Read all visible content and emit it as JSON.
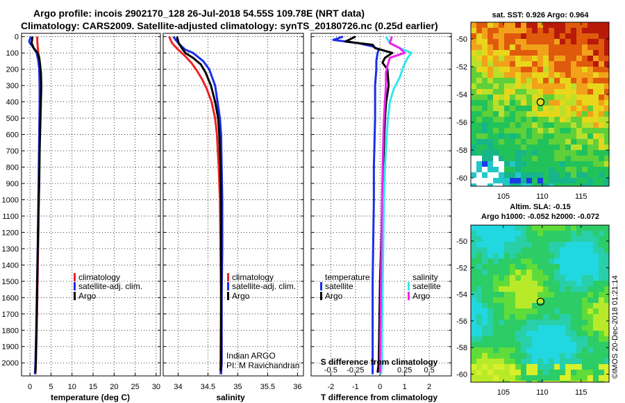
{
  "header": {
    "line1": "Argo profile: incois 2902170_128 26-Jul-2018 54.55S 109.78E (NRT data)",
    "line2": "Climatology: CARS2009. Satellite-adjusted climatology: synTS_20180726.nc (0.25d earlier)"
  },
  "colors": {
    "climatology": "#ee2222",
    "satellite": "#1a2ee6",
    "argo": "#000000",
    "salinity_satellite": "#33e6ee",
    "salinity_argo": "#ee22ee"
  },
  "chart_data": [
    {
      "type": "line",
      "name": "temperature",
      "xlabel": "temperature (deg C)",
      "ylabel": "",
      "xlim": [
        -2,
        31
      ],
      "ylim": [
        2080,
        -20
      ],
      "xticks": [
        "0",
        "5",
        "10",
        "15",
        "20",
        "25",
        "30"
      ],
      "xtick_values": [
        0,
        5,
        10,
        15,
        20,
        25,
        30
      ],
      "yticks": [
        "0",
        "100",
        "200",
        "300",
        "400",
        "500",
        "600",
        "700",
        "800",
        "900",
        "1000",
        "1100",
        "1200",
        "1300",
        "1400",
        "1500",
        "1600",
        "1700",
        "1800",
        "1900",
        "2000"
      ],
      "ytick_values": [
        0,
        100,
        200,
        300,
        400,
        500,
        600,
        700,
        800,
        900,
        1000,
        1100,
        1200,
        1300,
        1400,
        1500,
        1600,
        1700,
        1800,
        1900,
        2000
      ],
      "legend": [
        "climatology",
        "satellite-adj. clim.",
        "Argo"
      ],
      "series": [
        {
          "name": "climatology",
          "color_key": "climatology",
          "depth": [
            0,
            50,
            100,
            150,
            200,
            300,
            400,
            600,
            800,
            1000,
            1200,
            1500,
            1800,
            2000,
            2070
          ],
          "values": [
            1.7,
            1.8,
            2.0,
            2.3,
            2.4,
            2.5,
            2.4,
            2.3,
            2.2,
            2.1,
            2.0,
            1.8,
            1.6,
            1.4,
            1.3
          ]
        },
        {
          "name": "satellite-adj. clim.",
          "color_key": "satellite",
          "depth": [
            0,
            30,
            60,
            100,
            150,
            200,
            300,
            400,
            600,
            800,
            1000,
            1200,
            1500,
            1800,
            2000,
            2070
          ],
          "values": [
            0.2,
            -0.2,
            0.6,
            1.6,
            2.0,
            2.2,
            2.3,
            2.3,
            2.2,
            2.1,
            2.0,
            1.9,
            1.7,
            1.5,
            1.3,
            1.2
          ]
        },
        {
          "name": "Argo",
          "color_key": "argo",
          "depth": [
            0,
            40,
            70,
            100,
            130,
            170,
            220,
            300,
            400,
            500,
            700,
            900,
            1100,
            1400,
            1700,
            2000,
            2060
          ],
          "values": [
            0.6,
            0.4,
            0.9,
            1.8,
            2.2,
            2.4,
            2.6,
            2.7,
            2.6,
            2.5,
            2.3,
            2.2,
            2.0,
            1.8,
            1.6,
            1.4,
            1.3
          ]
        }
      ]
    },
    {
      "type": "line",
      "name": "salinity",
      "xlabel": "salinity",
      "xlim": [
        33.75,
        36.1
      ],
      "ylim": [
        2080,
        -20
      ],
      "xticks": [
        "34",
        "34.5",
        "35",
        "35.5",
        "36"
      ],
      "xtick_values": [
        34,
        34.5,
        35,
        35.5,
        36
      ],
      "legend": [
        "climatology",
        "satellite-adj. clim.",
        "Argo"
      ],
      "annotation": [
        "Indian ARGO",
        "PI: M Ravichandran"
      ],
      "series": [
        {
          "name": "climatology",
          "color_key": "climatology",
          "depth": [
            0,
            40,
            80,
            120,
            160,
            200,
            260,
            320,
            400,
            500,
            600,
            800,
            1000,
            1300,
            1600,
            2000,
            2070
          ],
          "values": [
            33.85,
            33.9,
            34.0,
            34.12,
            34.22,
            34.3,
            34.4,
            34.48,
            34.56,
            34.62,
            34.65,
            34.68,
            34.7,
            34.71,
            34.72,
            34.71,
            34.71
          ]
        },
        {
          "name": "satellite-adj. clim.",
          "color_key": "satellite",
          "depth": [
            0,
            30,
            60,
            80,
            100,
            150,
            200,
            300,
            400,
            500,
            600,
            800,
            1000,
            1300,
            1600,
            2000,
            2070
          ],
          "values": [
            33.92,
            33.98,
            34.06,
            34.12,
            34.25,
            34.42,
            34.52,
            34.62,
            34.66,
            34.7,
            34.72,
            34.73,
            34.74,
            34.74,
            34.73,
            34.73,
            34.72
          ]
        },
        {
          "name": "Argo",
          "color_key": "argo",
          "depth": [
            0,
            40,
            70,
            100,
            130,
            170,
            220,
            300,
            400,
            500,
            600,
            800,
            1000,
            1300,
            1600,
            2000,
            2050
          ],
          "values": [
            33.98,
            34.01,
            34.06,
            34.12,
            34.25,
            34.38,
            34.46,
            34.55,
            34.62,
            34.67,
            34.69,
            34.71,
            34.72,
            34.72,
            34.72,
            34.72,
            34.71
          ]
        }
      ]
    },
    {
      "type": "line",
      "name": "difference",
      "xlabel": "T difference from climatology",
      "xlabel_top": "S difference from climatology",
      "xlim": [
        -2.8,
        2.9
      ],
      "ylim": [
        2080,
        -20
      ],
      "xticks": [
        "-2",
        "-1",
        "0",
        "1",
        "2"
      ],
      "xtick_values": [
        -2,
        -1,
        0,
        1,
        2
      ],
      "sticks": [
        "-0.5",
        "-0.25",
        "0",
        "0.25",
        "0.5"
      ],
      "stick_values": [
        -0.5,
        -0.25,
        0,
        0.25,
        0.5
      ],
      "legend_titles": {
        "temperature": "temperature",
        "salinity": "salinity"
      },
      "legend_t": [
        "satellite",
        "Argo"
      ],
      "legend_s": [
        "satellite",
        "Argo"
      ],
      "series": [
        {
          "name": "T satellite",
          "color_key": "satellite",
          "depth": [
            0,
            20,
            40,
            60,
            80,
            100,
            150,
            200,
            300,
            500,
            800,
            1000,
            1500,
            2000,
            2070
          ],
          "values": [
            -1.5,
            -1.9,
            -0.9,
            -0.3,
            -0.05,
            -0.1,
            -0.15,
            -0.15,
            -0.2,
            -0.2,
            -0.25,
            -0.25,
            -0.3,
            -0.3,
            -0.3
          ]
        },
        {
          "name": "T Argo",
          "color_key": "argo",
          "depth": [
            0,
            30,
            50,
            70,
            100,
            130,
            160,
            200,
            300,
            400,
            500,
            700,
            1000,
            1500,
            2000,
            2060
          ],
          "values": [
            -1.0,
            -1.4,
            -0.3,
            -0.2,
            0.5,
            0.2,
            0.1,
            0.3,
            0.35,
            0.25,
            0.2,
            0.15,
            0.1,
            0.0,
            -0.05,
            -0.1
          ]
        },
        {
          "name": "S satellite",
          "color_key": "salinity_satellite",
          "depth": [
            0,
            40,
            70,
            100,
            130,
            180,
            250,
            320,
            400,
            500,
            600,
            800,
            1000,
            1400,
            1800,
            2000,
            2070
          ],
          "values": [
            0.06,
            0.1,
            0.2,
            0.32,
            0.28,
            0.24,
            0.2,
            0.14,
            0.1,
            0.08,
            0.07,
            0.05,
            0.04,
            0.03,
            0.02,
            0.02,
            0.01
          ]
        },
        {
          "name": "S Argo",
          "color_key": "salinity_argo",
          "depth": [
            0,
            40,
            70,
            100,
            130,
            170,
            220,
            300,
            400,
            500,
            700,
            1000,
            1500,
            2000,
            2060
          ],
          "values": [
            0.12,
            0.1,
            0.2,
            0.25,
            0.1,
            0.08,
            0.06,
            0.06,
            0.05,
            0.04,
            0.03,
            0.02,
            0.01,
            0.0,
            0.0
          ]
        }
      ]
    }
  ],
  "maps": {
    "sst_title": "sat. SST: 0.926 Argo: 0.964",
    "sla_title1": "Altim. SLA: -0.15",
    "sla_title2": "Argo h1000: -0.052 h2000: -0.072",
    "xticks": [
      "105",
      "110",
      "115"
    ],
    "xtick_values": [
      105,
      110,
      115
    ],
    "yticks": [
      "-50",
      "-52",
      "-54",
      "-56",
      "-58",
      "-60"
    ],
    "ytick_values": [
      -50,
      -52,
      -54,
      -56,
      -58,
      -60
    ],
    "lon_range": [
      100.8,
      118.6
    ],
    "lat_range": [
      -60.6,
      -48.8
    ],
    "float_lon": 109.78,
    "float_lat": -54.55
  },
  "footer": {
    "credit": "©IMOS 20-Dec-2018 01:21:14"
  }
}
